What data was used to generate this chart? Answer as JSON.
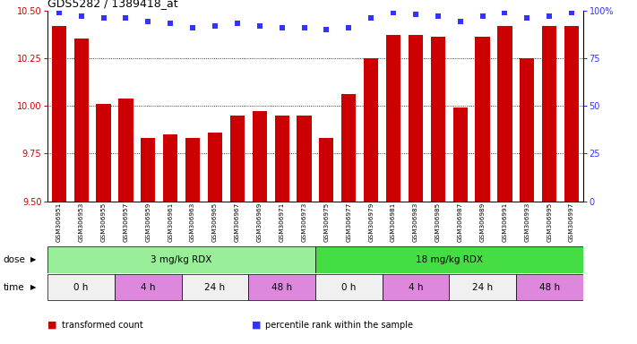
{
  "title": "GDS5282 / 1389418_at",
  "samples": [
    "GSM306951",
    "GSM306953",
    "GSM306955",
    "GSM306957",
    "GSM306959",
    "GSM306961",
    "GSM306963",
    "GSM306965",
    "GSM306967",
    "GSM306969",
    "GSM306971",
    "GSM306973",
    "GSM306975",
    "GSM306977",
    "GSM306979",
    "GSM306981",
    "GSM306983",
    "GSM306985",
    "GSM306987",
    "GSM306989",
    "GSM306991",
    "GSM306993",
    "GSM306995",
    "GSM306997"
  ],
  "bar_values": [
    10.42,
    10.35,
    10.01,
    10.04,
    9.83,
    9.85,
    9.83,
    9.86,
    9.95,
    9.97,
    9.95,
    9.95,
    9.83,
    10.06,
    10.25,
    10.37,
    10.37,
    10.36,
    9.99,
    10.36,
    10.42,
    10.25,
    10.42,
    10.42
  ],
  "percentile_values": [
    99,
    97,
    96,
    96,
    94,
    93,
    91,
    92,
    93,
    92,
    91,
    91,
    90,
    91,
    96,
    99,
    98,
    97,
    94,
    97,
    99,
    96,
    97,
    99
  ],
  "bar_color": "#CC0000",
  "percentile_color": "#3333FF",
  "ylim_left": [
    9.5,
    10.5
  ],
  "ylim_right": [
    0,
    100
  ],
  "yticks_left": [
    9.5,
    9.75,
    10.0,
    10.25,
    10.5
  ],
  "yticks_right": [
    0,
    25,
    50,
    75,
    100
  ],
  "grid_values": [
    9.75,
    10.0,
    10.25
  ],
  "dose_groups": [
    {
      "label": "3 mg/kg RDX",
      "start": 0,
      "end": 12,
      "color": "#99EE99"
    },
    {
      "label": "18 mg/kg RDX",
      "start": 12,
      "end": 24,
      "color": "#44DD44"
    }
  ],
  "time_groups": [
    {
      "label": "0 h",
      "start": 0,
      "end": 3,
      "color": "#F0F0F0"
    },
    {
      "label": "4 h",
      "start": 3,
      "end": 6,
      "color": "#DD88DD"
    },
    {
      "label": "24 h",
      "start": 6,
      "end": 9,
      "color": "#F0F0F0"
    },
    {
      "label": "48 h",
      "start": 9,
      "end": 12,
      "color": "#DD88DD"
    },
    {
      "label": "0 h",
      "start": 12,
      "end": 15,
      "color": "#F0F0F0"
    },
    {
      "label": "4 h",
      "start": 15,
      "end": 18,
      "color": "#DD88DD"
    },
    {
      "label": "24 h",
      "start": 18,
      "end": 21,
      "color": "#F0F0F0"
    },
    {
      "label": "48 h",
      "start": 21,
      "end": 24,
      "color": "#DD88DD"
    }
  ],
  "legend_items": [
    {
      "label": "transformed count",
      "color": "#CC0000"
    },
    {
      "label": "percentile rank within the sample",
      "color": "#3333FF"
    }
  ],
  "dose_label": "dose",
  "time_label": "time",
  "background_color": "#FFFFFF",
  "label_area_color": "#DDDDDD"
}
